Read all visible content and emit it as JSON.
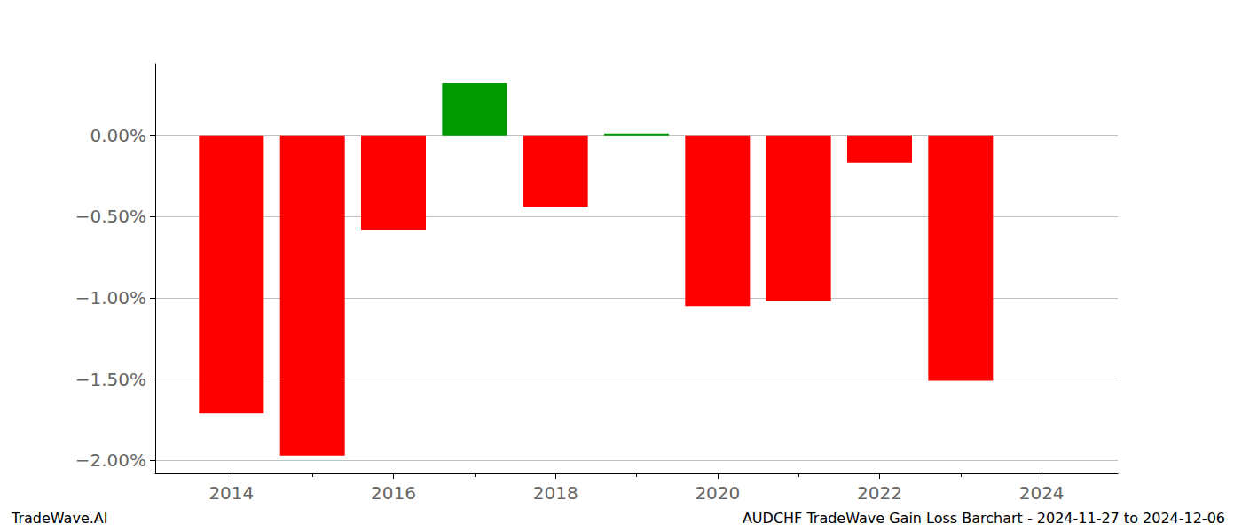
{
  "chart_data": {
    "type": "bar",
    "title": "AUDCHF TradeWave Gain Loss Barchart - 2024-11-27 to 2024-12-06",
    "annotations": [
      "TradeWave.AI"
    ],
    "x": [
      2014,
      2015,
      2016,
      2017,
      2018,
      2019,
      2020,
      2021,
      2022,
      2023
    ],
    "values": [
      -1.71,
      -1.97,
      -0.58,
      0.32,
      -0.44,
      0.01,
      -1.05,
      -1.02,
      -0.17,
      -1.51
    ],
    "colors": [
      "#ff0000",
      "#ff0000",
      "#ff0000",
      "#009900",
      "#ff0000",
      "#009900",
      "#ff0000",
      "#ff0000",
      "#ff0000",
      "#ff0000"
    ],
    "xlim": [
      2013.06,
      2024.94
    ],
    "xticks": [
      2014,
      2016,
      2018,
      2020,
      2022,
      2024
    ],
    "ylim": [
      -2.08,
      0.44
    ],
    "yticks": [
      {
        "value": -2,
        "label": "−2.00%"
      },
      {
        "value": -1.5,
        "label": "−1.50%"
      },
      {
        "value": -1,
        "label": "−1.00%"
      },
      {
        "value": -0.5,
        "label": "−0.50%"
      },
      {
        "value": 0,
        "label": "0.00%"
      }
    ],
    "grid": true
  }
}
